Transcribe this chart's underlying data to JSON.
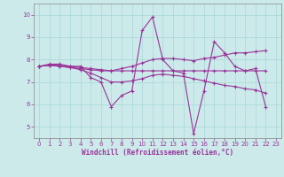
{
  "bg_color": "#cceaea",
  "line_color": "#993399",
  "grid_color": "#b0d8d8",
  "xlim": [
    -0.5,
    23.5
  ],
  "ylim": [
    4.5,
    10.5
  ],
  "yticks": [
    5,
    6,
    7,
    8,
    9,
    10
  ],
  "xticks": [
    0,
    1,
    2,
    3,
    4,
    5,
    6,
    7,
    8,
    9,
    10,
    11,
    12,
    13,
    14,
    15,
    16,
    17,
    18,
    19,
    20,
    21,
    22,
    23
  ],
  "xlabel": "Windchill (Refroidissement éolien,°C)",
  "series": [
    [
      7.7,
      7.8,
      7.8,
      7.7,
      7.7,
      7.2,
      7.0,
      5.9,
      6.4,
      6.6,
      9.3,
      9.9,
      8.0,
      7.5,
      7.4,
      4.7,
      6.6,
      8.8,
      8.3,
      7.7,
      7.5,
      7.6,
      5.9
    ],
    [
      7.7,
      7.75,
      7.75,
      7.7,
      7.65,
      7.6,
      7.55,
      7.5,
      7.6,
      7.7,
      7.85,
      8.0,
      8.05,
      8.05,
      8.0,
      7.95,
      8.05,
      8.1,
      8.2,
      8.3,
      8.3,
      8.35,
      8.4
    ],
    [
      7.7,
      7.75,
      7.7,
      7.65,
      7.6,
      7.55,
      7.5,
      7.5,
      7.5,
      7.5,
      7.5,
      7.5,
      7.5,
      7.5,
      7.5,
      7.5,
      7.5,
      7.5,
      7.5,
      7.5,
      7.5,
      7.5,
      7.5
    ],
    [
      7.7,
      7.75,
      7.7,
      7.65,
      7.55,
      7.4,
      7.2,
      7.0,
      7.0,
      7.05,
      7.15,
      7.3,
      7.35,
      7.3,
      7.25,
      7.15,
      7.05,
      6.95,
      6.85,
      6.8,
      6.7,
      6.65,
      6.5
    ]
  ]
}
